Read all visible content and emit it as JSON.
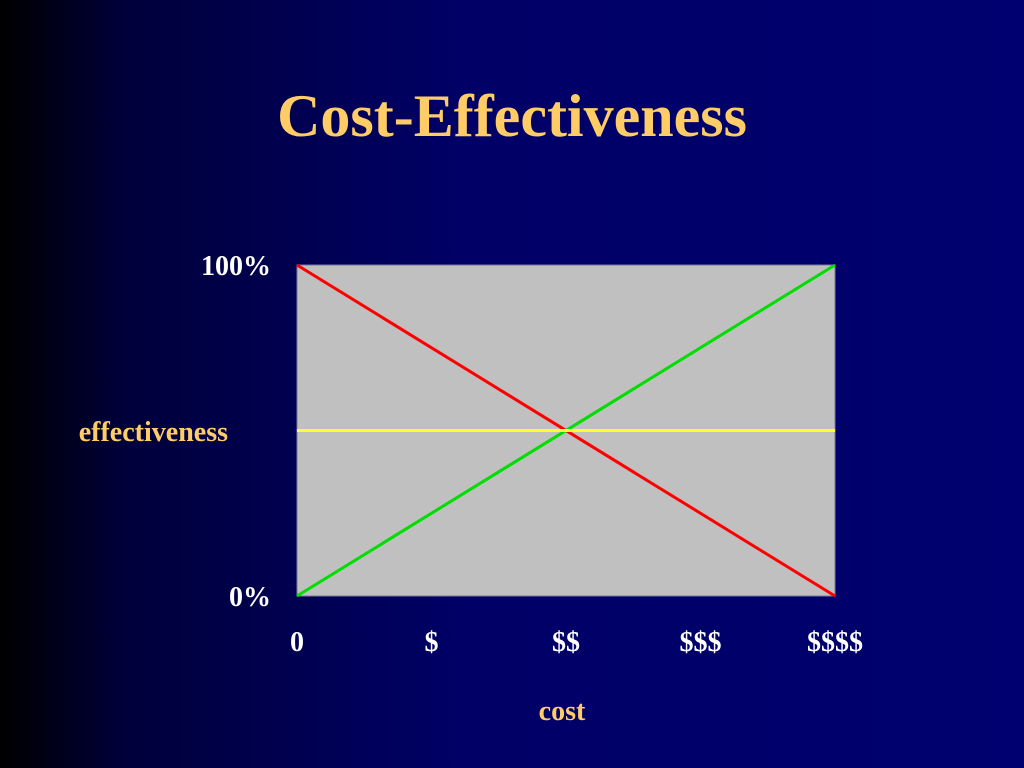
{
  "slide": {
    "title": "Cost-Effectiveness"
  },
  "colors": {
    "title": "#FFCC66",
    "axis_title": "#FFCC66",
    "tick_label": "#FFFFFF",
    "plot_background": "#C0C0C0",
    "plot_border": "#7A7A9A"
  },
  "chart_data": {
    "type": "line",
    "title": "Cost-Effectiveness",
    "xlabel": "cost",
    "ylabel": "effectiveness",
    "xlim": [
      0,
      4
    ],
    "ylim": [
      0,
      100
    ],
    "x_ticks": [
      {
        "value": 0,
        "label": "0"
      },
      {
        "value": 1,
        "label": "$"
      },
      {
        "value": 2,
        "label": "$$"
      },
      {
        "value": 3,
        "label": "$$$"
      },
      {
        "value": 4,
        "label": "$$$$"
      }
    ],
    "y_ticks": [
      {
        "value": 0,
        "label": "0%"
      },
      {
        "value": 100,
        "label": "100%"
      }
    ],
    "grid": false,
    "legend": "none",
    "series": [
      {
        "color": "#FF0000",
        "x": [
          0,
          4
        ],
        "y": [
          100,
          0
        ]
      },
      {
        "color": "#00DD00",
        "x": [
          0,
          4
        ],
        "y": [
          0,
          100
        ]
      },
      {
        "color": "#FFFF33",
        "x": [
          0,
          4
        ],
        "y": [
          50,
          50
        ]
      }
    ]
  }
}
